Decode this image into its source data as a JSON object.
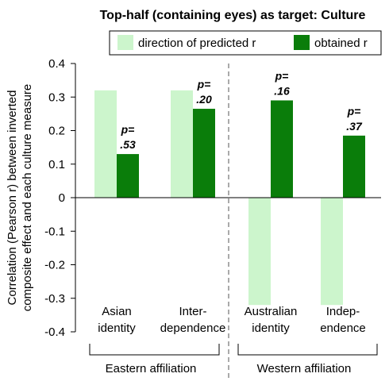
{
  "chart_data": {
    "type": "bar",
    "title": "Top-half (containing eyes) as target: Culture",
    "ylabel_lines": [
      "Correlation (Pearson r) between inverted",
      "composite effect and each culture measure"
    ],
    "ylim": [
      -0.4,
      0.4
    ],
    "yticks": [
      "0.4",
      "0.3",
      "0.2",
      "0.1",
      "0",
      "-0.1",
      "-0.2",
      "-0.3",
      "-0.4"
    ],
    "ytick_values": [
      0.4,
      0.3,
      0.2,
      0.1,
      0,
      -0.1,
      -0.2,
      -0.3,
      -0.4
    ],
    "categories": [
      {
        "lines": [
          "Asian",
          "identity"
        ]
      },
      {
        "lines": [
          "Inter-",
          "dependence"
        ]
      },
      {
        "lines": [
          "Australian",
          "identity"
        ]
      },
      {
        "lines": [
          "Indep-",
          "endence"
        ]
      }
    ],
    "series": [
      {
        "name": "direction of predicted r",
        "color": "#ccf5cc",
        "values": [
          0.32,
          0.32,
          -0.32,
          -0.32
        ]
      },
      {
        "name": "obtained r",
        "color": "#0a7d0a",
        "values": [
          0.13,
          0.265,
          0.29,
          0.185
        ]
      }
    ],
    "p_labels": [
      {
        "prefix": "p=",
        "value": ".53"
      },
      {
        "prefix": "p=",
        "value": ".20"
      },
      {
        "prefix": "p=",
        "value": ".16"
      },
      {
        "prefix": "p=",
        "value": ".37"
      }
    ],
    "groups": [
      {
        "label": "Eastern affiliation"
      },
      {
        "label": "Western affiliation"
      }
    ],
    "legend_position": "top-right",
    "grid": false
  }
}
